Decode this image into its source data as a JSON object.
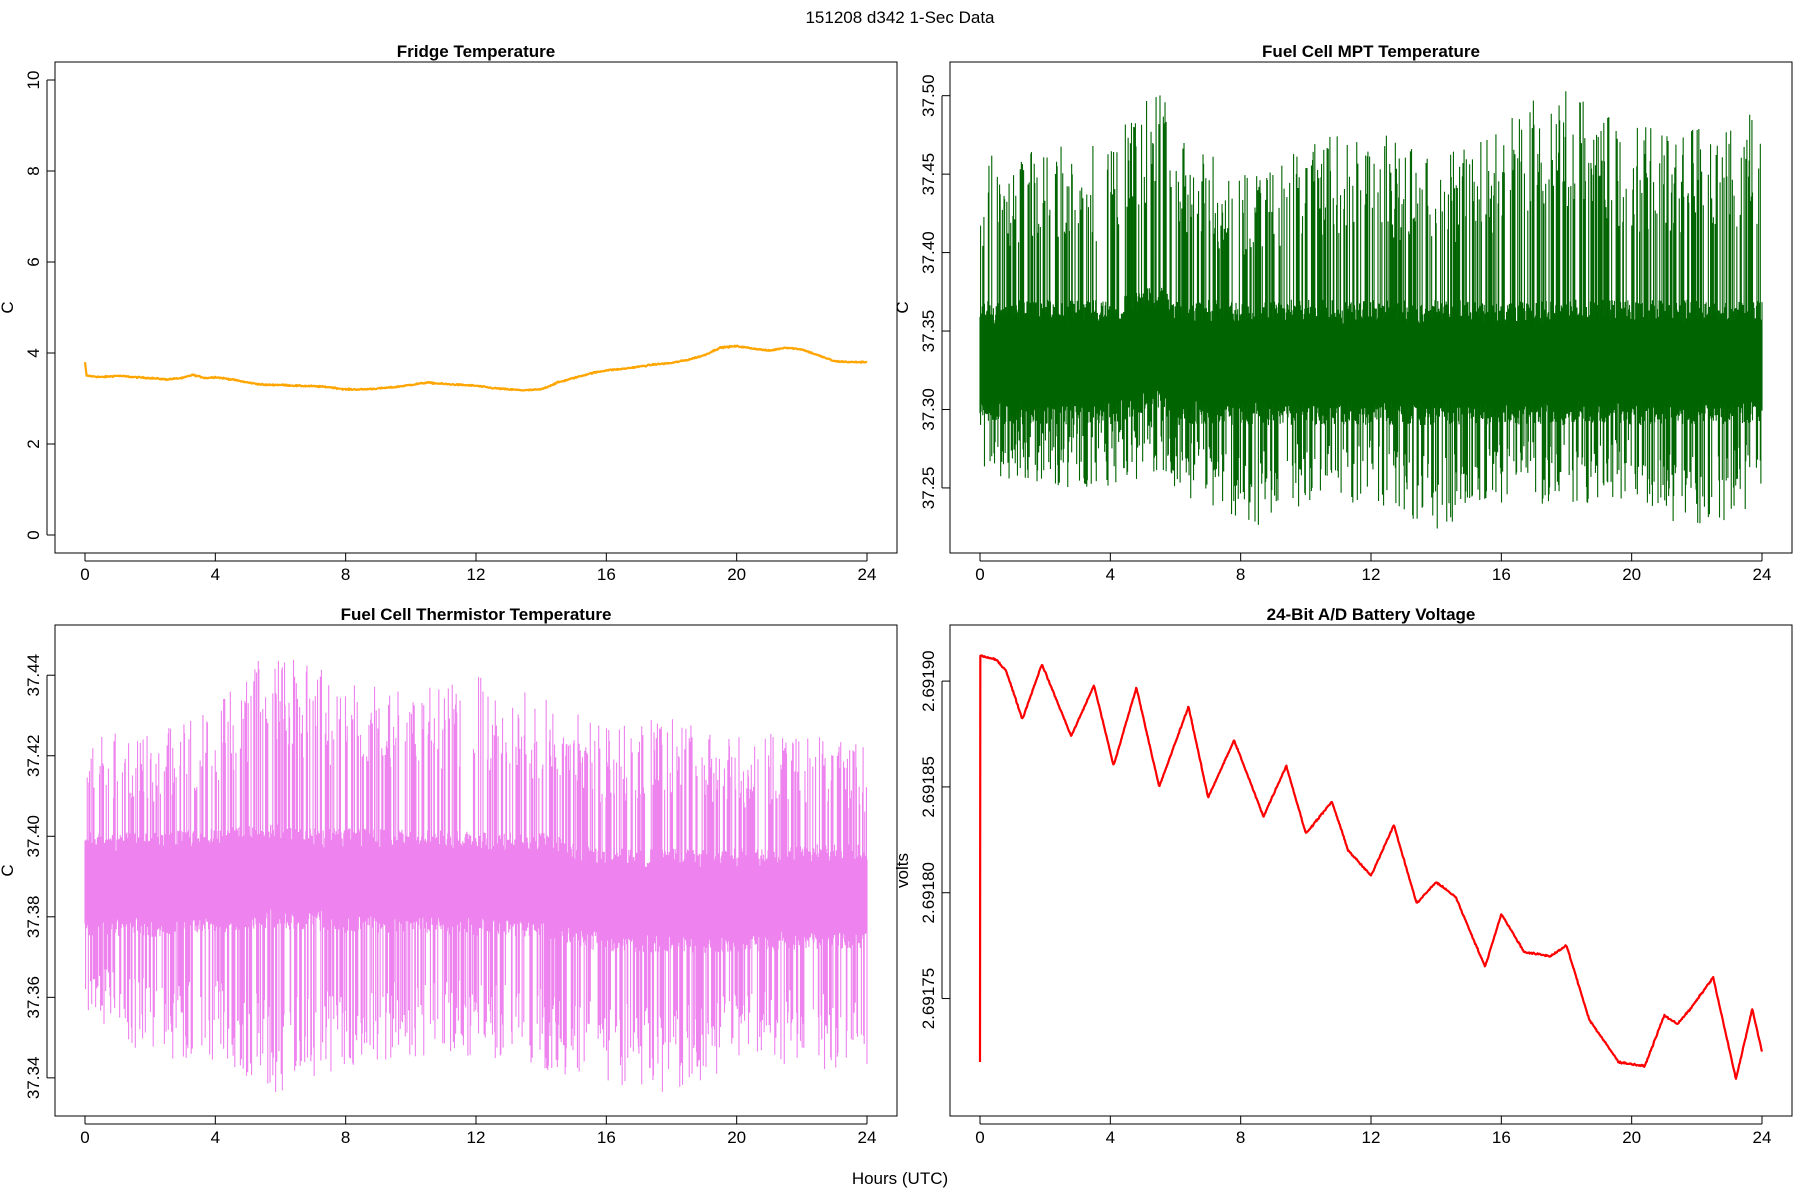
{
  "figure": {
    "title": "151208   d342   1-Sec Data",
    "xlabel": "Hours (UTC)"
  },
  "chart_data": [
    {
      "type": "line",
      "title": "Fridge Temperature",
      "xlabel": "",
      "ylabel": "C",
      "color": "#FFA500",
      "xlim": [
        0,
        24
      ],
      "ylim": [
        0,
        10
      ],
      "xticks": [
        0,
        4,
        8,
        12,
        16,
        20,
        24
      ],
      "yticks": [
        "0",
        "2",
        "4",
        "6",
        "8",
        "10"
      ],
      "series": [
        {
          "noise": 0.015,
          "x": [
            0,
            0.05,
            0.5,
            1,
            1.5,
            2,
            2.5,
            3,
            3.3,
            3.7,
            4,
            4.5,
            5,
            5.5,
            6,
            6.5,
            7,
            7.5,
            8,
            8.5,
            9,
            9.5,
            10,
            10.5,
            11,
            11.5,
            12,
            12.5,
            13,
            13.5,
            14,
            14.5,
            15,
            15.5,
            16,
            16.5,
            17,
            17.5,
            18,
            18.5,
            19,
            19.5,
            20,
            20.5,
            21,
            21.5,
            22,
            22.5,
            23,
            23.5,
            24
          ],
          "y": [
            3.8,
            3.5,
            3.47,
            3.5,
            3.47,
            3.45,
            3.42,
            3.45,
            3.52,
            3.45,
            3.47,
            3.42,
            3.35,
            3.3,
            3.3,
            3.28,
            3.27,
            3.25,
            3.2,
            3.2,
            3.22,
            3.25,
            3.3,
            3.35,
            3.32,
            3.3,
            3.28,
            3.23,
            3.2,
            3.18,
            3.2,
            3.35,
            3.45,
            3.55,
            3.62,
            3.65,
            3.7,
            3.75,
            3.78,
            3.85,
            3.95,
            4.12,
            4.15,
            4.1,
            4.05,
            4.12,
            4.08,
            3.95,
            3.82,
            3.8,
            3.8
          ]
        }
      ]
    },
    {
      "type": "line",
      "title": "Fuel Cell MPT Temperature",
      "xlabel": "",
      "ylabel": "C",
      "color": "#006400",
      "xlim": [
        0,
        24
      ],
      "ylim": [
        37.22,
        37.51
      ],
      "xticks": [
        0,
        4,
        8,
        12,
        16,
        20,
        24
      ],
      "yticks": [
        "37.25",
        "37.30",
        "37.35",
        "37.40",
        "37.45",
        "37.50"
      ],
      "series": [
        {
          "x": [
            0,
            2,
            4,
            5.5,
            6,
            8,
            10,
            12,
            14,
            16,
            17.5,
            20,
            22,
            24
          ],
          "center": [
            37.33,
            37.33,
            37.33,
            37.34,
            37.33,
            37.33,
            37.33,
            37.33,
            37.33,
            37.33,
            37.33,
            37.33,
            37.33,
            37.33
          ],
          "max": [
            37.46,
            37.47,
            37.47,
            37.51,
            37.48,
            37.45,
            37.47,
            37.48,
            37.46,
            37.48,
            37.51,
            37.48,
            37.48,
            37.49
          ],
          "min": [
            37.26,
            37.25,
            37.25,
            37.26,
            37.25,
            37.22,
            37.24,
            37.24,
            37.22,
            37.24,
            37.24,
            37.24,
            37.22,
            37.24
          ],
          "inner": 0.04
        }
      ]
    },
    {
      "type": "line",
      "title": "Fuel Cell Thermistor Temperature",
      "xlabel": "",
      "ylabel": "C",
      "color": "#EE82EE",
      "xlim": [
        0,
        24
      ],
      "ylim": [
        37.335,
        37.448
      ],
      "xticks": [
        0,
        4,
        8,
        12,
        16,
        20,
        24
      ],
      "yticks": [
        "37.34",
        "37.36",
        "37.38",
        "37.40",
        "37.42",
        "37.44"
      ],
      "series": [
        {
          "x": [
            0,
            2,
            4,
            5.8,
            8,
            10,
            12,
            14,
            16,
            18,
            20,
            22,
            24
          ],
          "center": [
            37.388,
            37.388,
            37.389,
            37.39,
            37.389,
            37.389,
            37.388,
            37.388,
            37.384,
            37.384,
            37.384,
            37.385,
            37.385
          ],
          "max": [
            37.427,
            37.425,
            37.432,
            37.448,
            37.438,
            37.436,
            37.44,
            37.435,
            37.427,
            37.43,
            37.425,
            37.427,
            37.422
          ],
          "min": [
            37.352,
            37.345,
            37.344,
            37.336,
            37.343,
            37.345,
            37.345,
            37.342,
            37.338,
            37.336,
            37.343,
            37.343,
            37.34
          ],
          "inner": 0.013
        }
      ]
    },
    {
      "type": "line",
      "title": "24-Bit A/D Battery Voltage",
      "xlabel": "",
      "ylabel": "volts",
      "color": "#FF0000",
      "xlim": [
        0,
        24
      ],
      "ylim": [
        2.691703,
        2.691918
      ],
      "xticks": [
        0,
        4,
        8,
        12,
        16,
        20,
        24
      ],
      "yticks": [
        "2.69175",
        "2.69180",
        "2.69185",
        "2.69190"
      ],
      "series": [
        {
          "noise": 4e-07,
          "x": [
            0,
            0.01,
            0.03,
            0.5,
            0.8,
            1.3,
            1.9,
            2.8,
            3.5,
            4.1,
            4.8,
            5.5,
            6.4,
            7.0,
            7.8,
            8.7,
            9.4,
            10.0,
            10.8,
            11.3,
            12.0,
            12.7,
            13.4,
            14.0,
            14.6,
            15.5,
            16.0,
            16.7,
            17.5,
            18.0,
            18.7,
            19.6,
            20.4,
            21.0,
            21.4,
            21.8,
            22.5,
            23.2,
            23.7,
            24
          ],
          "y": [
            2.69172,
            2.691912,
            2.691912,
            2.69191,
            2.691905,
            2.691882,
            2.691908,
            2.691874,
            2.691898,
            2.69186,
            2.691897,
            2.69185,
            2.691888,
            2.691845,
            2.691872,
            2.691836,
            2.69186,
            2.691828,
            2.691843,
            2.69182,
            2.691808,
            2.691832,
            2.691795,
            2.691805,
            2.691798,
            2.691765,
            2.69179,
            2.691772,
            2.69177,
            2.691775,
            2.69174,
            2.69172,
            2.691718,
            2.691742,
            2.691738,
            2.691745,
            2.69176,
            2.691712,
            2.691745,
            2.691725
          ]
        }
      ]
    }
  ]
}
